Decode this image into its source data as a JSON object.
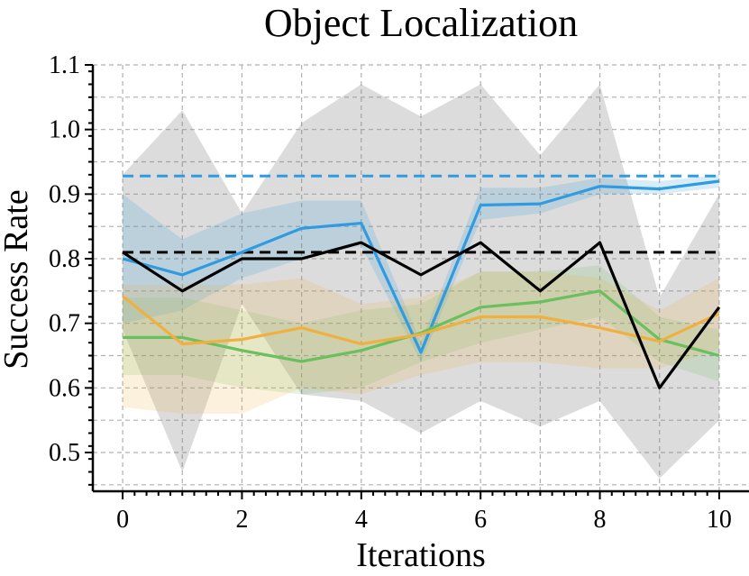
{
  "chart_data": {
    "type": "line",
    "title": "Object Localization",
    "xlabel": "Iterations",
    "ylabel": "Success Rate",
    "xlim": [
      -0.5,
      10.5
    ],
    "ylim": [
      0.44,
      1.1
    ],
    "xticks": [
      0,
      2,
      4,
      6,
      8,
      10
    ],
    "xtick_labels": [
      "0",
      "2",
      "4",
      "6",
      "8",
      "10"
    ],
    "yticks": [
      0.5,
      0.6,
      0.7,
      0.8,
      0.9,
      1.0,
      1.1
    ],
    "ytick_labels": [
      "0.5",
      "0.6",
      "0.7",
      "0.8",
      "0.9",
      "1.0",
      "1.1"
    ],
    "grid": true,
    "x": [
      0,
      1,
      2,
      3,
      4,
      5,
      6,
      7,
      8,
      9,
      10
    ],
    "series": [
      {
        "color": "#808080",
        "line_color": "#000000",
        "values": [
          0.81,
          0.75,
          0.8,
          0.8,
          0.825,
          0.775,
          0.825,
          0.75,
          0.825,
          0.6,
          0.725
        ],
        "lower": [
          0.69,
          0.47,
          0.73,
          0.59,
          0.58,
          0.53,
          0.58,
          0.54,
          0.58,
          0.46,
          0.55
        ],
        "upper": [
          0.93,
          1.03,
          0.87,
          1.01,
          1.07,
          1.02,
          1.07,
          0.96,
          1.07,
          0.74,
          0.9
        ]
      },
      {
        "color": "#2f9be0",
        "line_color": "#2f9be0",
        "values": [
          0.8,
          0.775,
          0.81,
          0.847,
          0.855,
          0.655,
          0.883,
          0.885,
          0.912,
          0.908,
          0.92
        ],
        "lower": [
          0.7,
          0.72,
          0.77,
          0.8,
          0.82,
          0.64,
          0.86,
          0.87,
          0.9,
          0.9,
          0.91
        ],
        "upper": [
          0.9,
          0.83,
          0.87,
          0.89,
          0.89,
          0.67,
          0.91,
          0.91,
          0.925,
          0.92,
          0.93
        ]
      },
      {
        "color": "#6abf5e",
        "line_color": "#6abf5e",
        "values": [
          0.678,
          0.678,
          0.658,
          0.641,
          0.658,
          0.685,
          0.725,
          0.733,
          0.75,
          0.675,
          0.65
        ],
        "lower": [
          0.62,
          0.62,
          0.6,
          0.59,
          0.6,
          0.64,
          0.67,
          0.69,
          0.71,
          0.64,
          0.61
        ],
        "upper": [
          0.74,
          0.74,
          0.72,
          0.7,
          0.72,
          0.73,
          0.78,
          0.78,
          0.79,
          0.71,
          0.69
        ]
      },
      {
        "color": "#f0b040",
        "line_color": "#f0b040",
        "values": [
          0.742,
          0.668,
          0.675,
          0.693,
          0.668,
          0.683,
          0.71,
          0.71,
          0.693,
          0.672,
          0.715
        ],
        "lower": [
          0.57,
          0.56,
          0.56,
          0.6,
          0.59,
          0.62,
          0.64,
          0.64,
          0.63,
          0.63,
          0.66
        ],
        "upper": [
          0.76,
          0.76,
          0.76,
          0.77,
          0.73,
          0.74,
          0.78,
          0.78,
          0.77,
          0.72,
          0.77
        ]
      }
    ],
    "reference_lines": [
      {
        "y": 0.928,
        "color": "#2f9be0"
      },
      {
        "y": 0.81,
        "color": "#000000"
      }
    ]
  }
}
